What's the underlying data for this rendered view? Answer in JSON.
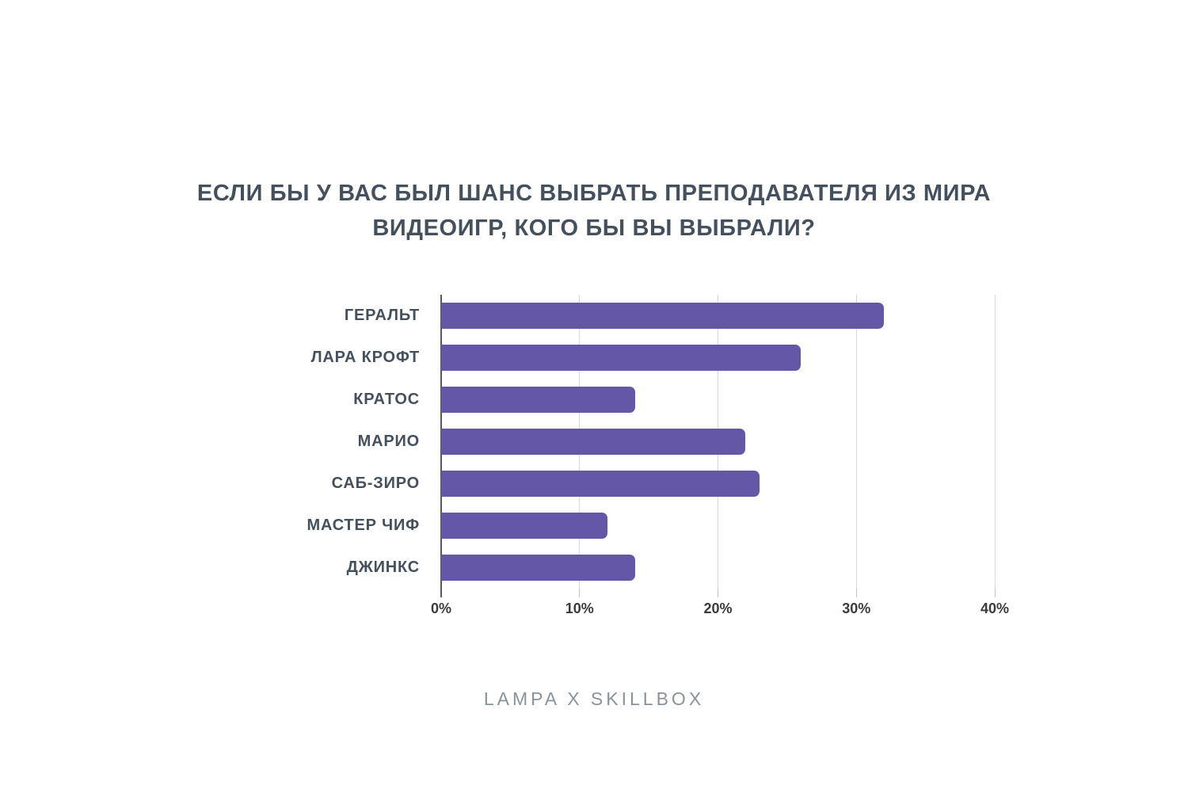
{
  "title": {
    "line1": "ЕСЛИ БЫ У ВАС БЫЛ ШАНС ВЫБРАТЬ ПРЕПОДАВАТЕЛЯ ИЗ МИРА",
    "line2": "ВИДЕОИГР, КОГО БЫ ВЫ ВЫБРАЛИ?"
  },
  "chart_data": {
    "type": "bar",
    "orientation": "horizontal",
    "title": "ЕСЛИ БЫ У ВАС БЫЛ ШАНС ВЫБРАТЬ ПРЕПОДАВАТЕЛЯ ИЗ МИРА ВИДЕОИГР, КОГО БЫ ВЫ ВЫБРАЛИ?",
    "categories": [
      "ГЕРАЛЬТ",
      "ЛАРА КРОФТ",
      "КРАТОС",
      "МАРИО",
      "САБ-ЗИРО",
      "МАСТЕР ЧИФ",
      "ДЖИНКС"
    ],
    "values": [
      32,
      26,
      14,
      22,
      23,
      12,
      14
    ],
    "unit": "%",
    "xlim": [
      0,
      40
    ],
    "x_tick_values": [
      0,
      10,
      20,
      30,
      40
    ],
    "x_tick_labels": [
      "0%",
      "10%",
      "20%",
      "30%",
      "40%"
    ],
    "grid": "vertical",
    "legend": "none"
  },
  "footer": {
    "text": "LAMPA X SKILLBOX"
  },
  "theme": {
    "bar-color": "#6457A8",
    "title-color": "#44505E",
    "grid-color": "#D9D9D9",
    "axis-color": "#595959",
    "tick-label-color": "#3B3B3B",
    "footer-color": "#8A929C",
    "background": "#FFFFFF"
  }
}
